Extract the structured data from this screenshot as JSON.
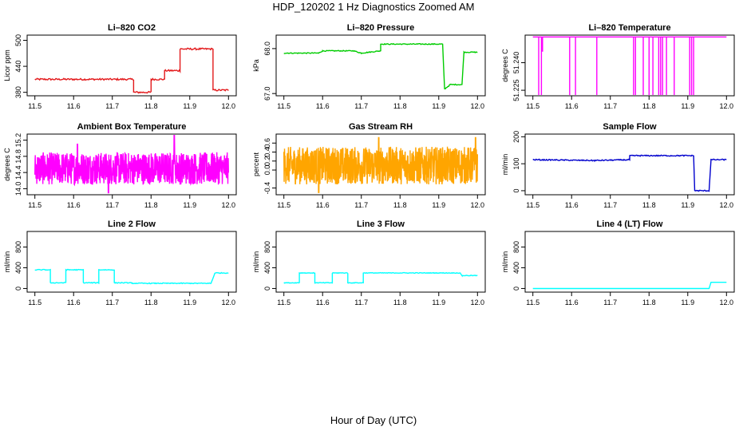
{
  "header": {
    "title": "HDP_120202  1 Hz Diagnostics Zoomed AM",
    "xlabel": "Hour of Day (UTC)"
  },
  "chart_data": [
    {
      "type": "line",
      "title": "Li–820 CO2",
      "ylabel": "Licor ppm",
      "color": "#e31a1c",
      "xlim": [
        11.48,
        12.02
      ],
      "ylim": [
        372,
        512
      ],
      "xticks": [
        "11.5",
        "11.6",
        "11.7",
        "11.8",
        "11.9",
        "12.0"
      ],
      "yticks": [
        "380",
        "440",
        "500"
      ],
      "x": [
        11.5,
        11.755,
        11.755,
        11.8,
        11.8,
        11.835,
        11.835,
        11.875,
        11.875,
        11.96,
        11.96,
        12.0
      ],
      "values": [
        410,
        410,
        380,
        380,
        410,
        410,
        430,
        430,
        480,
        480,
        385,
        385
      ],
      "noise": 2
    },
    {
      "type": "line",
      "title": "Li–820 Pressure",
      "ylabel": "kPa",
      "color": "#00cc00",
      "xlim": [
        11.48,
        12.02
      ],
      "ylim": [
        66.95,
        68.3
      ],
      "xticks": [
        "11.5",
        "11.6",
        "11.7",
        "11.8",
        "11.9",
        "12.0"
      ],
      "yticks": [
        "67.0",
        "68.0"
      ],
      "x": [
        11.5,
        11.59,
        11.6,
        11.68,
        11.7,
        11.75,
        11.75,
        11.91,
        11.915,
        11.93,
        11.96,
        11.965,
        12.0
      ],
      "values": [
        67.9,
        67.9,
        67.95,
        67.95,
        67.9,
        67.95,
        68.1,
        68.1,
        67.1,
        67.2,
        67.2,
        67.92,
        67.92
      ],
      "noise": 0.01
    },
    {
      "type": "line",
      "title": "Li–820 Temperature",
      "ylabel": "degrees C",
      "color": "#ff00ff",
      "xlim": [
        11.48,
        12.02
      ],
      "ylim": [
        51.222,
        51.255
      ],
      "xticks": [
        "11.5",
        "11.6",
        "11.7",
        "11.8",
        "11.9",
        "12.0"
      ],
      "yticks": [
        "51.225",
        "51.240"
      ],
      "baseline": 51.254,
      "low": 51.222,
      "dips": [
        11.515,
        11.522,
        11.595,
        11.61,
        11.665,
        11.76,
        11.765,
        11.785,
        11.8,
        11.81,
        11.825,
        11.83,
        11.835,
        11.845,
        11.865,
        11.905,
        11.91,
        11.915
      ],
      "partial_dips": [
        [
          11.525,
          51.246
        ]
      ]
    },
    {
      "type": "line",
      "title": "Ambient Box Temperature",
      "ylabel": "degrees C",
      "color": "#ff00ff",
      "xlim": [
        11.48,
        12.02
      ],
      "ylim": [
        13.85,
        15.35
      ],
      "xticks": [
        "11.5",
        "11.6",
        "11.7",
        "11.8",
        "11.9",
        "12.0"
      ],
      "yticks": [
        "14.0",
        "14.4",
        "14.8",
        "15.2"
      ],
      "mean": 14.5,
      "amplitude": 0.4,
      "spikes": [
        [
          11.69,
          13.9
        ],
        [
          11.86,
          15.35
        ],
        [
          11.61,
          15.1
        ]
      ]
    },
    {
      "type": "line",
      "title": "Gas Stream RH",
      "ylabel": "percent",
      "color": "#ffa500",
      "xlim": [
        11.48,
        12.02
      ],
      "ylim": [
        -0.55,
        0.8
      ],
      "xticks": [
        "11.5",
        "11.6",
        "11.7",
        "11.8",
        "11.9",
        "12.0"
      ],
      "yticks": [
        "-0.4",
        "0.0",
        "0.2",
        "0.4",
        "0.6"
      ],
      "mean": 0.1,
      "amplitude": 0.42,
      "spikes": [
        [
          11.745,
          0.72
        ],
        [
          11.995,
          0.72
        ],
        [
          11.59,
          -0.5
        ]
      ]
    },
    {
      "type": "line",
      "title": "Sample Flow",
      "ylabel": "ml/min",
      "color": "#0000cd",
      "xlim": [
        11.48,
        12.02
      ],
      "ylim": [
        -15,
        210
      ],
      "xticks": [
        "11.5",
        "11.6",
        "11.7",
        "11.8",
        "11.9",
        "12.0"
      ],
      "yticks": [
        "0",
        "100",
        "200"
      ],
      "x": [
        11.5,
        11.66,
        11.75,
        11.75,
        11.915,
        11.918,
        11.955,
        11.96,
        12.0
      ],
      "values": [
        115,
        112,
        115,
        130,
        130,
        0,
        0,
        115,
        115
      ],
      "noise": 2
    },
    {
      "type": "line",
      "title": "Line 2 Flow",
      "ylabel": "ml/min",
      "color": "#00ffff",
      "xlim": [
        11.48,
        12.02
      ],
      "ylim": [
        -70,
        1100
      ],
      "xticks": [
        "11.5",
        "11.6",
        "11.7",
        "11.8",
        "11.9",
        "12.0"
      ],
      "yticks": [
        "0",
        "400",
        "800"
      ],
      "x": [
        11.5,
        11.54,
        11.54,
        11.58,
        11.58,
        11.625,
        11.625,
        11.665,
        11.665,
        11.705,
        11.705,
        11.75,
        11.75,
        11.955,
        11.965,
        12.0
      ],
      "values": [
        360,
        360,
        110,
        110,
        360,
        360,
        110,
        110,
        360,
        360,
        110,
        110,
        100,
        100,
        300,
        300
      ],
      "noise": 8
    },
    {
      "type": "line",
      "title": "Line 3 Flow",
      "ylabel": "ml/min",
      "color": "#00ffff",
      "xlim": [
        11.48,
        12.02
      ],
      "ylim": [
        -70,
        1100
      ],
      "xticks": [
        "11.5",
        "11.6",
        "11.7",
        "11.8",
        "11.9",
        "12.0"
      ],
      "yticks": [
        "0",
        "400",
        "800"
      ],
      "x": [
        11.5,
        11.54,
        11.54,
        11.58,
        11.58,
        11.625,
        11.625,
        11.665,
        11.665,
        11.705,
        11.705,
        11.955,
        11.96,
        12.0
      ],
      "values": [
        110,
        110,
        300,
        300,
        110,
        110,
        300,
        300,
        110,
        110,
        300,
        300,
        250,
        250
      ],
      "noise": 6
    },
    {
      "type": "line",
      "title": "Line 4 (LT) Flow",
      "ylabel": "ml/min",
      "color": "#00ffff",
      "xlim": [
        11.48,
        12.02
      ],
      "ylim": [
        -70,
        1100
      ],
      "xticks": [
        "11.5",
        "11.6",
        "11.7",
        "11.8",
        "11.9",
        "12.0"
      ],
      "yticks": [
        "0",
        "400",
        "800"
      ],
      "x": [
        11.5,
        11.955,
        11.96,
        12.0
      ],
      "values": [
        0,
        0,
        120,
        120
      ],
      "noise": 0
    }
  ]
}
